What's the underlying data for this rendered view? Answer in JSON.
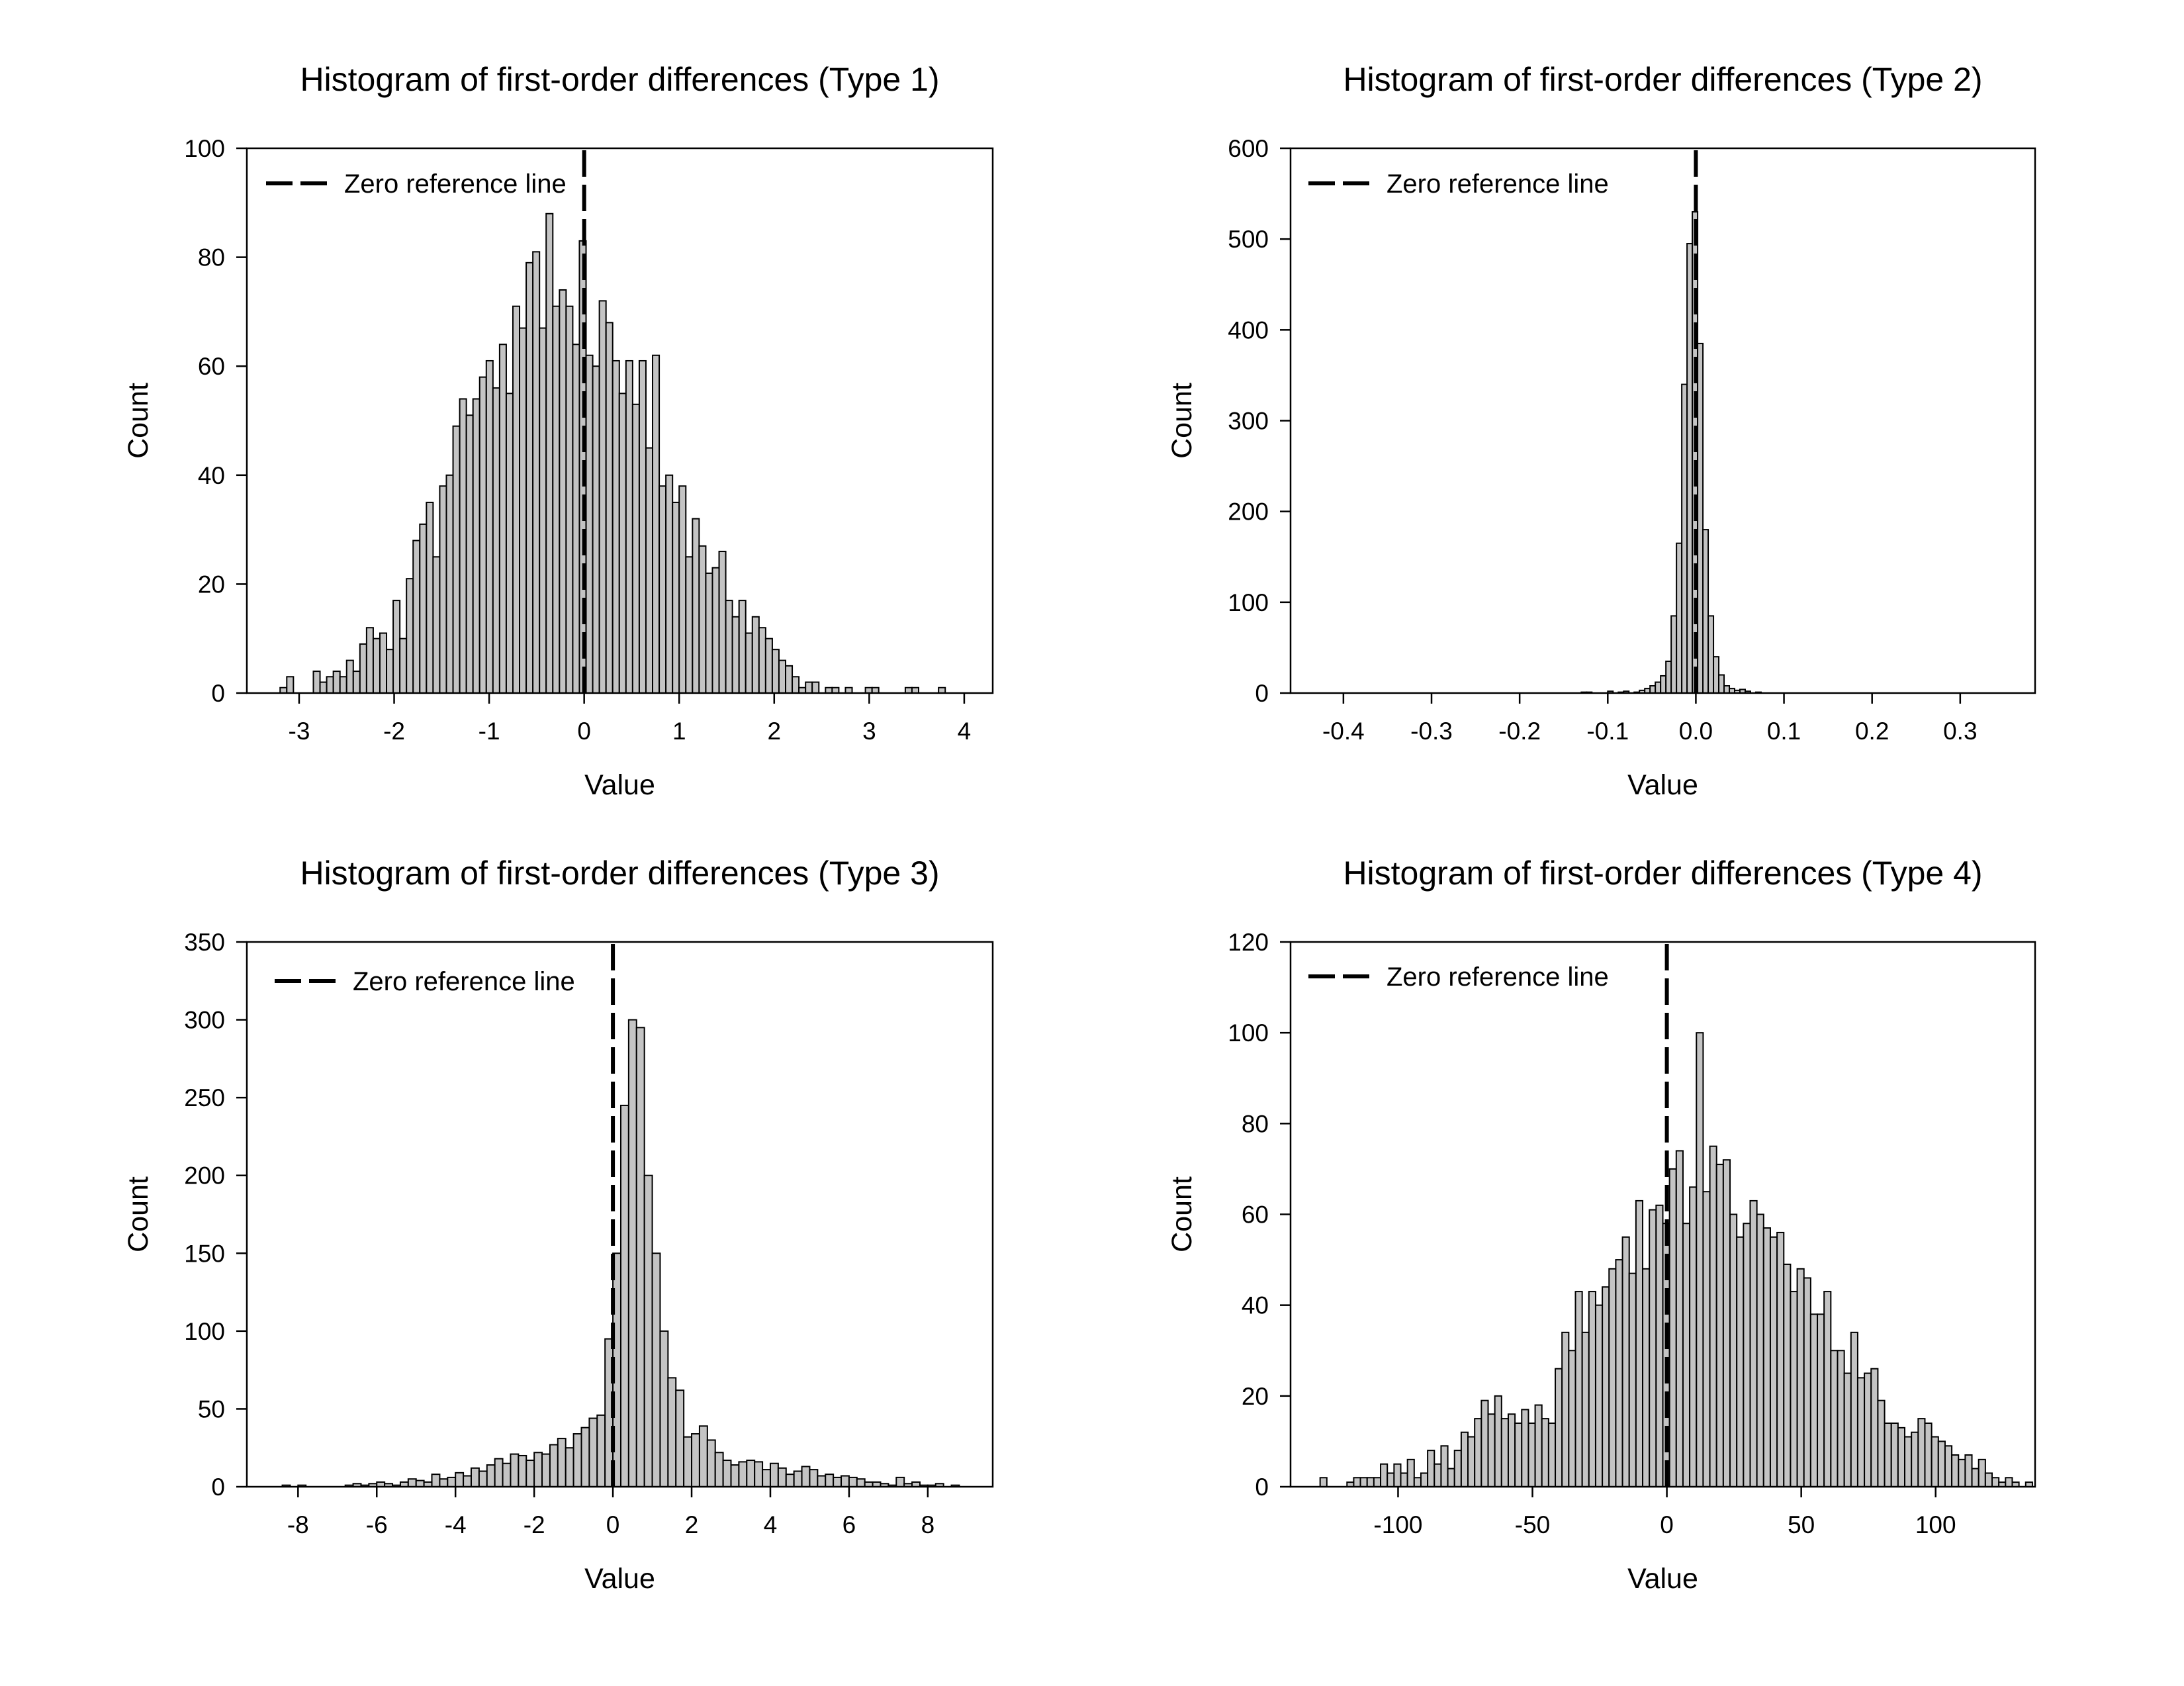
{
  "chart_data": [
    {
      "type": "bar",
      "title": "Histogram of first-order differences (Type 1)",
      "xlabel": "Value",
      "ylabel": "Count",
      "xlim": [
        -3.55,
        4.3
      ],
      "ylim": [
        0,
        100
      ],
      "xticks": [
        -3,
        -2,
        -1,
        0,
        1,
        2,
        3,
        4
      ],
      "xtick_labels": [
        "-3",
        "-2",
        "-1",
        "0",
        "1",
        "2",
        "3",
        "4"
      ],
      "yticks": [
        0,
        20,
        40,
        60,
        80,
        100
      ],
      "ytick_labels": [
        "0",
        "20",
        "40",
        "60",
        "80",
        "100"
      ],
      "bin_start": -3.2,
      "bin_width": 0.07,
      "values": [
        1,
        3,
        0,
        0,
        0,
        4,
        2,
        3,
        4,
        3,
        6,
        4,
        9,
        12,
        10,
        11,
        8,
        17,
        10,
        21,
        28,
        31,
        35,
        25,
        38,
        40,
        49,
        54,
        51,
        54,
        58,
        61,
        56,
        64,
        55,
        71,
        67,
        79,
        81,
        67,
        88,
        71,
        74,
        71,
        64,
        83,
        62,
        60,
        72,
        68,
        61,
        55,
        61,
        53,
        61,
        45,
        62,
        38,
        40,
        35,
        38,
        25,
        32,
        27,
        22,
        23,
        26,
        17,
        14,
        17,
        11,
        14,
        12,
        10,
        8,
        6,
        5,
        3,
        1,
        2,
        2,
        0,
        1,
        1,
        0,
        1,
        0,
        0,
        1,
        1,
        0,
        0,
        0,
        0,
        1,
        1,
        0,
        0,
        0,
        1,
        0,
        0
      ],
      "legend": {
        "label": "Zero reference line",
        "position": "top-left"
      },
      "reference_line": 0
    },
    {
      "type": "bar",
      "title": "Histogram of first-order differences (Type 2)",
      "xlabel": "Value",
      "ylabel": "Count",
      "xlim": [
        -0.46,
        0.385
      ],
      "ylim": [
        0,
        600
      ],
      "xticks": [
        -0.4,
        -0.3,
        -0.2,
        -0.1,
        0.0,
        0.1,
        0.2,
        0.3
      ],
      "xtick_labels": [
        "-0.4",
        "-0.3",
        "-0.2",
        "-0.1",
        "0.0",
        "0.1",
        "0.2",
        "0.3"
      ],
      "yticks": [
        0,
        100,
        200,
        300,
        400,
        500,
        600
      ],
      "ytick_labels": [
        "0",
        "100",
        "200",
        "300",
        "400",
        "500",
        "600"
      ],
      "bin_start": -0.13,
      "bin_width": 0.006,
      "values": [
        1,
        1,
        0,
        0,
        0,
        2,
        0,
        1,
        2,
        0,
        1,
        3,
        5,
        8,
        12,
        19,
        35,
        85,
        165,
        340,
        495,
        530,
        385,
        180,
        85,
        40,
        20,
        8,
        5,
        3,
        4,
        2,
        0,
        1
      ],
      "legend": {
        "label": "Zero reference line",
        "position": "top-left"
      },
      "reference_line": 0
    },
    {
      "type": "bar",
      "title": "Histogram of first-order differences (Type 3)",
      "xlabel": "Value",
      "ylabel": "Count",
      "xlim": [
        -9.3,
        9.65
      ],
      "ylim": [
        0,
        350
      ],
      "xticks": [
        -8,
        -6,
        -4,
        -2,
        0,
        2,
        4,
        6,
        8
      ],
      "xtick_labels": [
        "-8",
        "-6",
        "-4",
        "-2",
        "0",
        "2",
        "4",
        "6",
        "8"
      ],
      "yticks": [
        0,
        50,
        100,
        150,
        200,
        250,
        300,
        350
      ],
      "ytick_labels": [
        "0",
        "50",
        "100",
        "150",
        "200",
        "250",
        "300",
        "350"
      ],
      "bin_start": -8.8,
      "bin_width": 0.2,
      "values": [
        0,
        0,
        1,
        0,
        1,
        0,
        0,
        0,
        0,
        0,
        1,
        2,
        1,
        2,
        3,
        2,
        1,
        3,
        5,
        4,
        3,
        8,
        5,
        6,
        9,
        7,
        12,
        10,
        14,
        18,
        15,
        21,
        20,
        17,
        22,
        21,
        27,
        31,
        25,
        34,
        38,
        44,
        46,
        95,
        150,
        245,
        300,
        295,
        200,
        150,
        100,
        70,
        62,
        32,
        34,
        39,
        30,
        22,
        17,
        14,
        16,
        17,
        16,
        11,
        15,
        12,
        8,
        10,
        13,
        11,
        7,
        8,
        6,
        7,
        6,
        5,
        3,
        3,
        2,
        1,
        6,
        2,
        3,
        1,
        1,
        2,
        0,
        1,
        0,
        0,
        0,
        0
      ],
      "legend": {
        "label": "Zero reference line",
        "position": "top-left"
      },
      "reference_line": 0
    },
    {
      "type": "bar",
      "title": "Histogram of first-order differences (Type 4)",
      "xlabel": "Value",
      "ylabel": "Count",
      "xlim": [
        -140,
        137
      ],
      "ylim": [
        0,
        120
      ],
      "xticks": [
        -100,
        -50,
        0,
        50,
        100
      ],
      "xtick_labels": [
        "-100",
        "-50",
        "0",
        "50",
        "100"
      ],
      "yticks": [
        0,
        20,
        40,
        60,
        80,
        100,
        120
      ],
      "ytick_labels": [
        "0",
        "20",
        "40",
        "60",
        "80",
        "100",
        "120"
      ],
      "bin_start": -129,
      "bin_width": 2.5,
      "values": [
        2,
        0,
        0,
        0,
        1,
        2,
        2,
        2,
        2,
        5,
        3,
        5,
        3,
        6,
        2,
        3,
        8,
        5,
        9,
        4,
        8,
        12,
        11,
        15,
        19,
        16,
        20,
        15,
        16,
        14,
        17,
        14,
        18,
        15,
        14,
        26,
        34,
        30,
        43,
        34,
        43,
        40,
        44,
        48,
        50,
        55,
        47,
        63,
        48,
        61,
        62,
        58,
        70,
        74,
        58,
        66,
        100,
        65,
        75,
        71,
        72,
        60,
        55,
        58,
        63,
        60,
        57,
        55,
        56,
        49,
        43,
        48,
        46,
        38,
        38,
        43,
        30,
        30,
        25,
        34,
        24,
        25,
        26,
        19,
        14,
        14,
        13,
        11,
        12,
        15,
        14,
        11,
        10,
        9,
        7,
        6,
        7,
        4,
        6,
        3,
        2,
        1,
        2,
        1,
        0,
        1
      ],
      "legend": {
        "label": "Zero reference line",
        "position": "top-left"
      },
      "reference_line": 0
    }
  ]
}
